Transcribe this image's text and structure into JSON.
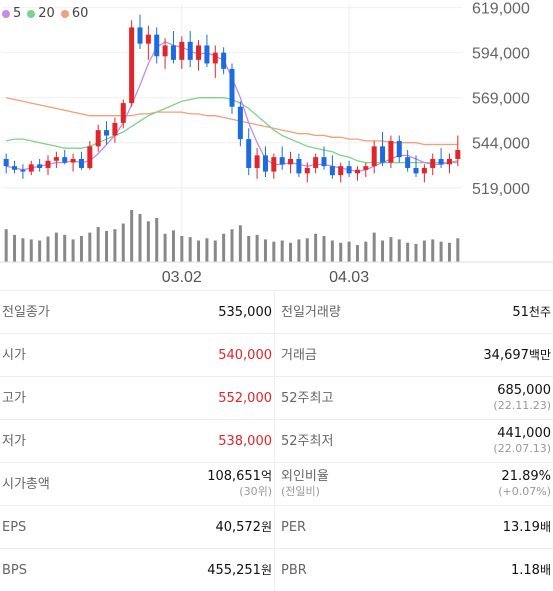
{
  "legend": [
    {
      "label": "5",
      "color": "#c58be8"
    },
    {
      "label": "20",
      "color": "#7fd28c"
    },
    {
      "label": "60",
      "color": "#f2a07a"
    }
  ],
  "chart_data": {
    "type": "candlestick",
    "y_ticks": [
      "619,000",
      "594,000",
      "569,000",
      "544,000",
      "519,000"
    ],
    "ylim": [
      515000,
      621000
    ],
    "x_ticks": [
      "03.02",
      "04.03"
    ],
    "up_color": "#e0262c",
    "down_color": "#1c6be0",
    "candles": [
      [
        535000,
        538000,
        527000,
        531000
      ],
      [
        531000,
        534000,
        527000,
        529000
      ],
      [
        529000,
        532000,
        524000,
        528000
      ],
      [
        528000,
        534000,
        526000,
        532000
      ],
      [
        532000,
        535000,
        528000,
        530000
      ],
      [
        530000,
        537000,
        526000,
        534000
      ],
      [
        534000,
        539000,
        530000,
        536000
      ],
      [
        536000,
        540000,
        532000,
        533000
      ],
      [
        533000,
        538000,
        528000,
        535000
      ],
      [
        535000,
        539000,
        529000,
        530000
      ],
      [
        530000,
        545000,
        529000,
        542000
      ],
      [
        542000,
        554000,
        539000,
        551000
      ],
      [
        551000,
        556000,
        543000,
        548000
      ],
      [
        548000,
        558000,
        544000,
        555000
      ],
      [
        555000,
        568000,
        552000,
        566000
      ],
      [
        566000,
        612000,
        564000,
        608000
      ],
      [
        608000,
        615000,
        596000,
        599000
      ],
      [
        599000,
        609000,
        590000,
        604000
      ],
      [
        604000,
        608000,
        588000,
        592000
      ],
      [
        592000,
        602000,
        585000,
        598000
      ],
      [
        598000,
        606000,
        588000,
        590000
      ],
      [
        590000,
        603000,
        585000,
        600000
      ],
      [
        600000,
        606000,
        586000,
        590000
      ],
      [
        590000,
        601000,
        584000,
        598000
      ],
      [
        598000,
        604000,
        586000,
        588000
      ],
      [
        588000,
        598000,
        580000,
        594000
      ],
      [
        594000,
        597000,
        582000,
        585000
      ],
      [
        585000,
        588000,
        560000,
        564000
      ],
      [
        564000,
        567000,
        542000,
        546000
      ],
      [
        546000,
        552000,
        526000,
        530000
      ],
      [
        530000,
        541000,
        524000,
        537000
      ],
      [
        537000,
        542000,
        525000,
        528000
      ],
      [
        528000,
        538000,
        524000,
        536000
      ],
      [
        536000,
        542000,
        529000,
        532000
      ],
      [
        532000,
        539000,
        527000,
        535000
      ],
      [
        535000,
        538000,
        525000,
        527000
      ],
      [
        527000,
        533000,
        522000,
        530000
      ],
      [
        530000,
        538000,
        527000,
        536000
      ],
      [
        536000,
        542000,
        529000,
        531000
      ],
      [
        531000,
        537000,
        524000,
        526000
      ],
      [
        526000,
        533000,
        522000,
        531000
      ],
      [
        531000,
        534000,
        525000,
        527000
      ],
      [
        527000,
        531000,
        523000,
        529000
      ],
      [
        529000,
        533000,
        525000,
        531000
      ],
      [
        531000,
        545000,
        527000,
        542000
      ],
      [
        542000,
        550000,
        531000,
        533000
      ],
      [
        533000,
        548000,
        530000,
        545000
      ],
      [
        545000,
        548000,
        533000,
        536000
      ],
      [
        536000,
        540000,
        528000,
        530000
      ],
      [
        530000,
        537000,
        525000,
        527000
      ],
      [
        527000,
        532000,
        522000,
        530000
      ],
      [
        530000,
        538000,
        526000,
        535000
      ],
      [
        535000,
        541000,
        530000,
        532000
      ],
      [
        532000,
        538000,
        527000,
        535000
      ],
      [
        535000,
        548000,
        531000,
        540000
      ]
    ],
    "volume": [
      58,
      48,
      42,
      40,
      38,
      45,
      52,
      48,
      40,
      46,
      52,
      62,
      55,
      58,
      68,
      92,
      85,
      72,
      78,
      50,
      56,
      46,
      44,
      38,
      42,
      38,
      50,
      58,
      65,
      46,
      48,
      40,
      36,
      38,
      34,
      40,
      42,
      50,
      46,
      38,
      34,
      36,
      30,
      36,
      52,
      38,
      44,
      40,
      34,
      32,
      38,
      40,
      36,
      34,
      42
    ],
    "ma5": [
      531,
      530,
      529,
      530,
      531,
      532,
      533,
      533,
      534,
      533,
      534,
      538,
      543,
      548,
      555,
      565,
      576,
      588,
      597,
      600,
      598,
      597,
      595,
      593,
      594,
      592,
      590,
      580,
      569,
      555,
      544,
      535,
      532,
      532,
      533,
      532,
      531,
      532,
      532,
      531,
      530,
      529,
      528,
      529,
      531,
      533,
      535,
      537,
      537,
      535,
      533,
      532,
      532,
      533,
      534
    ],
    "ma20": [
      545,
      546,
      546,
      545,
      544,
      543,
      542,
      541,
      541,
      541,
      542,
      544,
      546,
      548,
      550,
      553,
      556,
      559,
      561,
      563,
      565,
      567,
      568,
      569,
      569,
      569,
      569,
      568,
      566,
      563,
      559,
      555,
      551,
      548,
      546,
      544,
      542,
      541,
      540,
      539,
      537,
      536,
      534,
      533,
      533,
      533,
      533,
      533,
      533,
      533,
      533,
      533,
      533,
      533,
      533
    ],
    "ma60": [
      569,
      568,
      567,
      566,
      565,
      564,
      563,
      562,
      561,
      560,
      559,
      559,
      559,
      559,
      559,
      559,
      560,
      560,
      561,
      561,
      561,
      561,
      560,
      560,
      559,
      559,
      558,
      557,
      556,
      555,
      554,
      553,
      552,
      551,
      550,
      549,
      549,
      548,
      548,
      547,
      547,
      546,
      546,
      545,
      545,
      545,
      544,
      544,
      544,
      544,
      543,
      543,
      543,
      543,
      543
    ]
  },
  "stats": [
    {
      "left": {
        "label": "전일종가",
        "value": "535,000",
        "unit": "",
        "red": false
      },
      "right": {
        "label": "전일거래량",
        "value": "51",
        "unit": "천주",
        "red": false
      }
    },
    {
      "left": {
        "label": "시가",
        "value": "540,000",
        "unit": "",
        "red": true
      },
      "right": {
        "label": "거래금",
        "value": "34,697",
        "unit": "백만",
        "red": false
      }
    },
    {
      "left": {
        "label": "고가",
        "value": "552,000",
        "unit": "",
        "red": true
      },
      "right": {
        "label": "52주최고",
        "value": "685,000",
        "unit": "",
        "sub": "(22.11.23)",
        "red": false
      }
    },
    {
      "left": {
        "label": "저가",
        "value": "538,000",
        "unit": "",
        "red": true
      },
      "right": {
        "label": "52주최저",
        "value": "441,000",
        "unit": "",
        "sub": "(22.07.13)",
        "red": false
      }
    },
    {
      "left": {
        "label": "시가총액",
        "value": "108,651",
        "unit": "억",
        "sub": "(30위)",
        "red": false
      },
      "right": {
        "label": "외인비율",
        "labelsub": "(전일비)",
        "value": "21.89%",
        "unit": "",
        "sub": "(+0.07%)",
        "red": false
      }
    },
    {
      "left": {
        "label": "EPS",
        "value": "40,572",
        "unit": "원",
        "red": false
      },
      "right": {
        "label": "PER",
        "value": "13.19",
        "unit": "배",
        "red": false
      }
    },
    {
      "left": {
        "label": "BPS",
        "value": "455,251",
        "unit": "원",
        "red": false
      },
      "right": {
        "label": "PBR",
        "value": "1.18",
        "unit": "배",
        "red": false
      }
    }
  ]
}
